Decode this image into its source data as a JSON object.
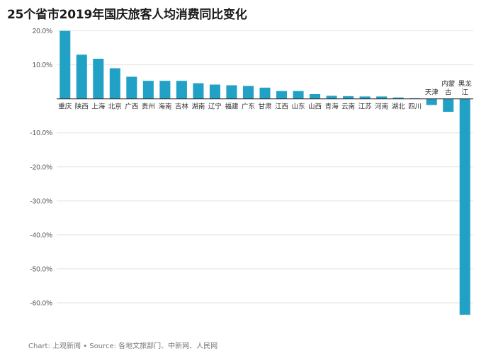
{
  "chart_data": {
    "type": "bar",
    "title": "25个省市2019年国庆旅客人均消费同比变化",
    "categories": [
      "重庆",
      "陕西",
      "上海",
      "北京",
      "广西",
      "贵州",
      "海南",
      "吉林",
      "湖南",
      "辽宁",
      "福建",
      "广东",
      "甘肃",
      "江西",
      "山东",
      "山西",
      "青海",
      "云南",
      "江苏",
      "河南",
      "湖北",
      "四川",
      "天津",
      "内蒙古",
      "黑龙江"
    ],
    "category_label_lines": [
      [
        "重庆"
      ],
      [
        "陕西"
      ],
      [
        "上海"
      ],
      [
        "北京"
      ],
      [
        "广西"
      ],
      [
        "贵州"
      ],
      [
        "海南"
      ],
      [
        "吉林"
      ],
      [
        "湖南"
      ],
      [
        "辽宁"
      ],
      [
        "福建"
      ],
      [
        "广东"
      ],
      [
        "甘肃"
      ],
      [
        "江西"
      ],
      [
        "山东"
      ],
      [
        "山西"
      ],
      [
        "青海"
      ],
      [
        "云南"
      ],
      [
        "江苏"
      ],
      [
        "河南"
      ],
      [
        "湖北"
      ],
      [
        "四川"
      ],
      [
        "天津"
      ],
      [
        "内蒙",
        "古"
      ],
      [
        "黑龙",
        "江"
      ]
    ],
    "values": [
      20.0,
      13.0,
      11.8,
      9.0,
      6.5,
      5.3,
      5.3,
      5.3,
      4.6,
      4.2,
      4.0,
      3.8,
      3.3,
      2.3,
      2.3,
      1.4,
      0.9,
      0.8,
      0.7,
      0.7,
      0.4,
      0.2,
      -1.8,
      -3.8,
      -63.5
    ],
    "ylim": [
      -65,
      22
    ],
    "yticks": [
      20,
      10,
      0,
      -10,
      -20,
      -30,
      -40,
      -50,
      -60
    ],
    "ytick_labels": [
      "20.0%",
      "10.0%",
      "",
      "-10.0%",
      "-20.0%",
      "-30.0%",
      "-40.0%",
      "-50.0%",
      "-60.0%"
    ],
    "grid": true,
    "bar_color": "#22a1c7",
    "xlabel": "",
    "ylabel": ""
  },
  "footer": "Chart: 上观新闻 • Source: 各地文旅部门、中新网、人民网"
}
